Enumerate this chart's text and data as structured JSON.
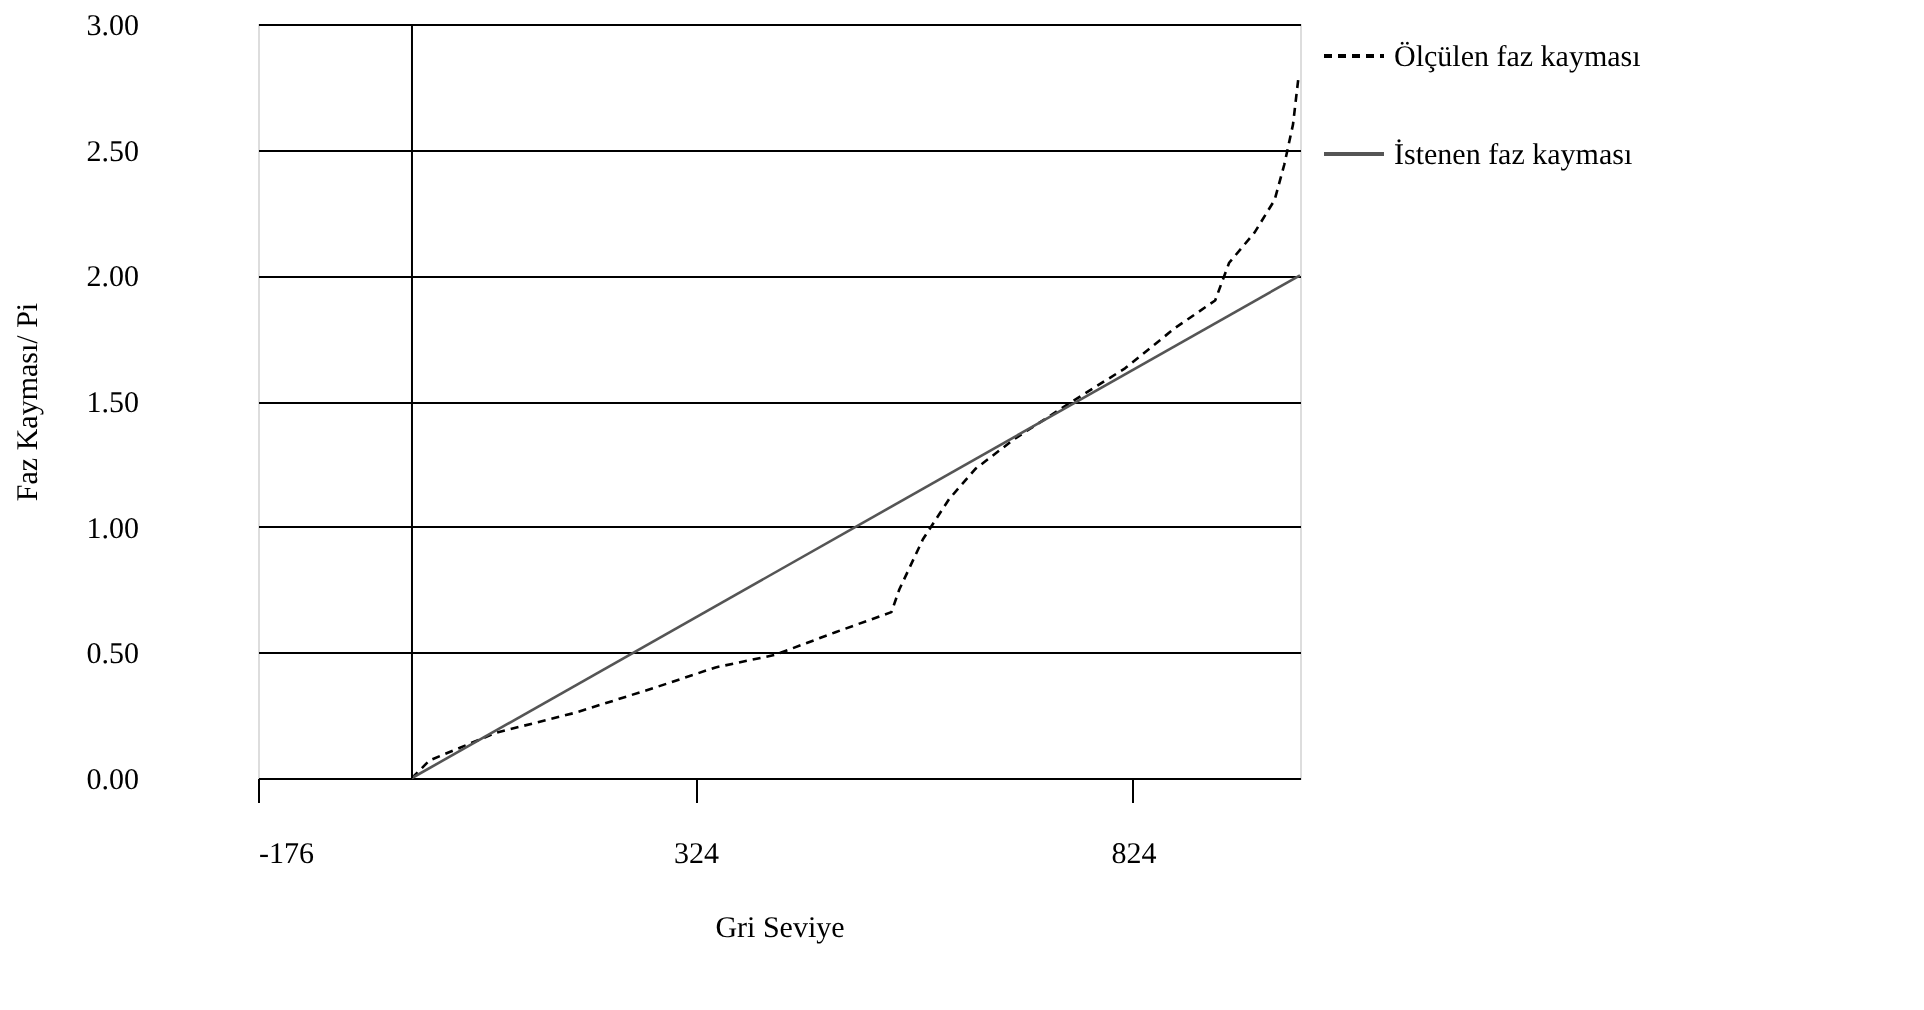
{
  "chart_data": {
    "type": "line",
    "xlabel": "Gri Seviye",
    "ylabel": "Faz Kayması/ Pi",
    "xlim": [
      -176,
      1015
    ],
    "xticks": [
      -176,
      324,
      824
    ],
    "ylim": [
      0,
      3
    ],
    "yticks": [
      {
        "value": 0,
        "label": "0.00"
      },
      {
        "value": 0.5,
        "label": "0.50"
      },
      {
        "value": 1,
        "label": "1.00"
      },
      {
        "value": 1.5,
        "label": "1.50"
      },
      {
        "value": 2,
        "label": "2.00"
      },
      {
        "value": 2.5,
        "label": "2.50"
      },
      {
        "value": 3,
        "label": "3.00"
      }
    ],
    "grid": "y",
    "legend": "right",
    "marker": "none",
    "ref_lines": [
      {
        "axis": "x",
        "value": 0,
        "color": "#000000"
      }
    ],
    "series": [
      {
        "name": "Ölçülen faz kayması",
        "color": "#000000",
        "line_style": "dashed",
        "x": [
          0,
          20,
          96,
          187,
          278,
          347,
          415,
          484,
          548,
          557,
          584,
          614,
          644,
          689,
          751,
          815,
          872,
          918,
          934,
          963,
          986,
          997,
          1007,
          1013
        ],
        "values": [
          0,
          0.07,
          0.18,
          0.26,
          0.36,
          0.44,
          0.49,
          0.58,
          0.66,
          0.75,
          0.95,
          1.11,
          1.23,
          1.35,
          1.49,
          1.63,
          1.79,
          1.9,
          2.05,
          2.17,
          2.3,
          2.44,
          2.6,
          2.78
        ]
      },
      {
        "name": "İstenen faz kayması",
        "color": "#555555",
        "line_style": "solid",
        "x": [
          0,
          1015
        ],
        "values": [
          0,
          2
        ]
      }
    ]
  }
}
